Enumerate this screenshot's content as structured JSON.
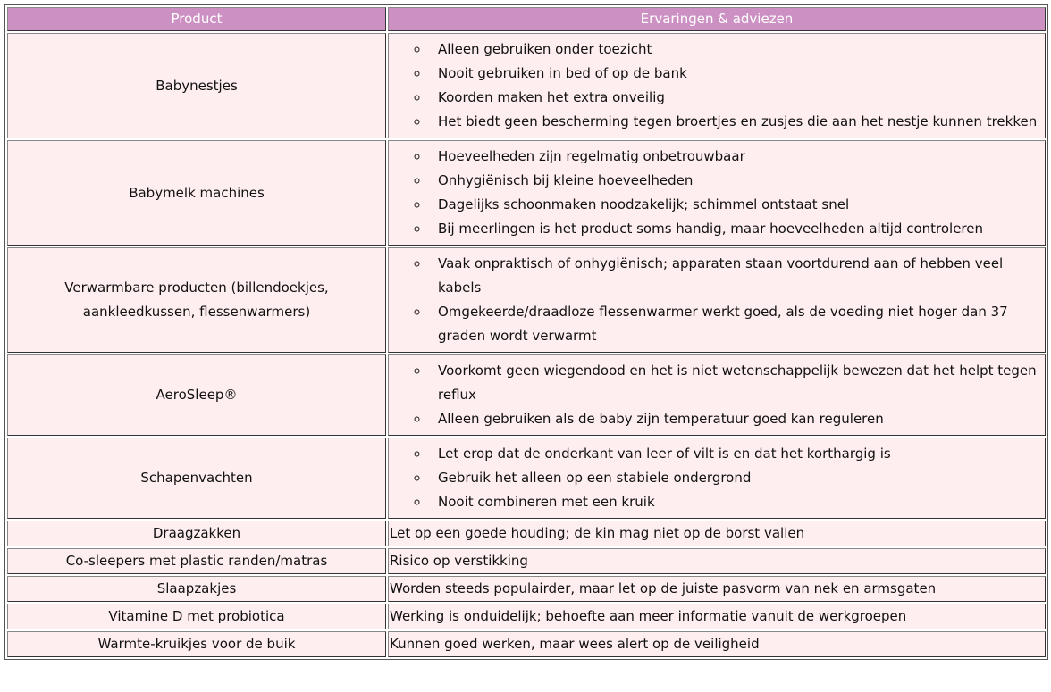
{
  "header": {
    "product": "Product",
    "advice": "Ervaringen & adviezen"
  },
  "rows": [
    {
      "product": "Babynestjes",
      "advice": [
        "Alleen gebruiken onder toezicht",
        "Nooit gebruiken in bed of op de bank",
        "Koorden maken het extra onveilig",
        "Het biedt geen bescherming tegen broertjes en zusjes die aan het nestje kunnen trekken"
      ]
    },
    {
      "product": "Babymelk machines",
      "advice": [
        "Hoeveelheden zijn regelmatig onbetrouwbaar",
        "Onhygiënisch bij kleine hoeveelheden",
        "Dagelijks schoonmaken noodzakelijk; schimmel ontstaat snel",
        "Bij meerlingen is het product soms handig, maar hoeveelheden altijd controleren"
      ]
    },
    {
      "product": "Verwarmbare producten (billendoekjes, aankleedkussen, flessenwarmers)",
      "advice": [
        "Vaak onpraktisch of onhygiënisch; apparaten staan voortdurend aan of hebben veel kabels",
        "Omgekeerde/draadloze flessenwarmer werkt goed, als de voeding niet hoger dan 37 graden wordt verwarmt"
      ]
    },
    {
      "product": "AeroSleep®",
      "advice": [
        "Voorkomt geen wiegendood en het is niet wetenschappelijk bewezen dat het helpt tegen reflux",
        "Alleen gebruiken als de baby zijn temperatuur goed kan reguleren"
      ]
    },
    {
      "product": "Schapenvachten",
      "advice": [
        "Let erop dat de onderkant van leer of vilt is en dat het korthargig is",
        "Gebruik het alleen op een stabiele ondergrond",
        "Nooit combineren met een kruik"
      ]
    },
    {
      "product": "Draagzakken",
      "advice": "Let op een goede houding; de kin mag niet op de borst vallen"
    },
    {
      "product": "Co-sleepers met plastic randen/matras",
      "advice": "Risico op verstikking"
    },
    {
      "product": "Slaapzakjes",
      "advice": "Worden steeds populairder, maar let op de juiste pasvorm van nek en armsgaten"
    },
    {
      "product": "Vitamine D met probiotica",
      "advice": "Werking is onduidelijk; behoefte aan meer informatie vanuit de werkgroepen"
    },
    {
      "product": "Warmte-kruikjes voor de buik",
      "advice": "Kunnen goed werken, maar wees alert op de veiligheid"
    }
  ]
}
